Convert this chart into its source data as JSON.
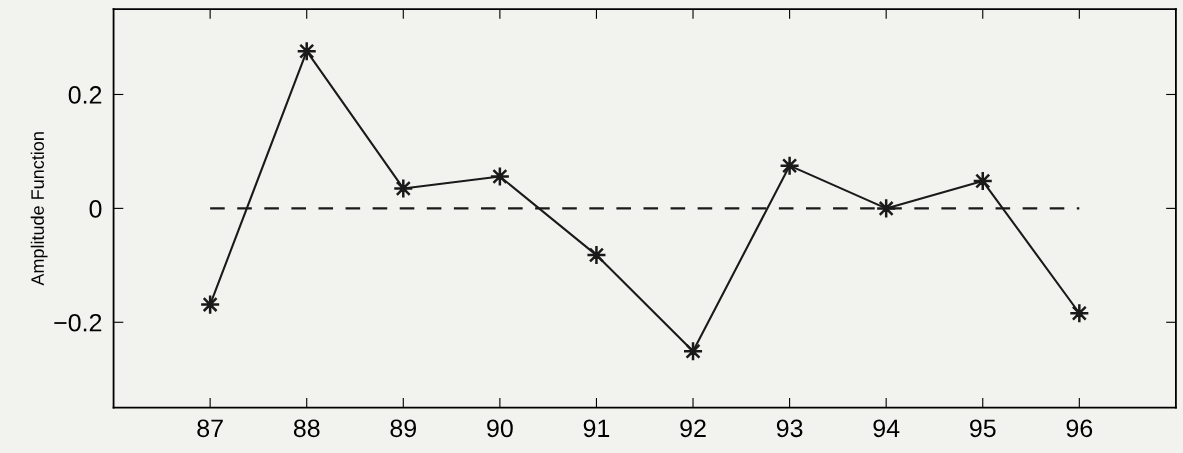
{
  "chart_data": {
    "type": "line",
    "ylabel": "Amplitude Function",
    "x": [
      87,
      88,
      89,
      90,
      91,
      92,
      93,
      94,
      95,
      96
    ],
    "series": [
      {
        "color": "#1a1a1a",
        "marker": "star",
        "line_style": "solid",
        "values": [
          -0.169,
          0.276,
          0.035,
          0.056,
          -0.082,
          -0.251,
          0.075,
          0.0,
          0.048,
          -0.184
        ]
      },
      {
        "color": "#1a1a1a",
        "marker": "none",
        "line_style": "dashed",
        "x": [
          87,
          96
        ],
        "values": [
          0,
          0
        ]
      }
    ],
    "xlim": [
      86,
      97
    ],
    "xticks": [
      87,
      88,
      89,
      90,
      91,
      92,
      93,
      94,
      95,
      96
    ],
    "ylim": [
      -0.35,
      0.35
    ],
    "yticks": [
      {
        "value": -0.2,
        "label": "−0.2"
      },
      0,
      0.2
    ],
    "grid": false,
    "legend": false
  }
}
